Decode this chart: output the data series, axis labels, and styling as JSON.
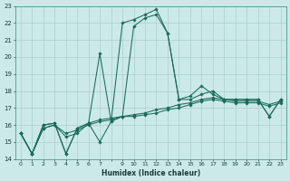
{
  "xlabel": "Humidex (Indice chaleur)",
  "xlim": [
    -0.5,
    23.5
  ],
  "ylim": [
    14,
    23
  ],
  "xticks": [
    0,
    1,
    2,
    3,
    4,
    5,
    6,
    7,
    9,
    10,
    11,
    12,
    13,
    14,
    15,
    16,
    17,
    18,
    19,
    20,
    21,
    22,
    23
  ],
  "yticks": [
    14,
    15,
    16,
    17,
    18,
    19,
    20,
    21,
    22,
    23
  ],
  "bg_color": "#cce9e9",
  "line_color": "#1a6b5a",
  "grid_color": "#aacfcf",
  "series": [
    [
      15.5,
      14.3,
      16.0,
      16.1,
      14.3,
      15.8,
      16.1,
      15.0,
      16.2,
      16.5,
      21.8,
      22.3,
      22.5,
      21.4,
      17.5,
      17.7,
      18.3,
      17.8,
      17.5,
      17.5,
      17.5,
      17.5,
      16.5,
      17.5
    ],
    [
      15.5,
      14.3,
      16.0,
      16.1,
      14.3,
      15.8,
      16.1,
      20.2,
      16.2,
      22.0,
      22.2,
      22.5,
      22.8,
      21.4,
      17.5,
      17.5,
      17.8,
      18.0,
      17.5,
      17.5,
      17.5,
      17.5,
      16.5,
      17.5
    ],
    [
      15.5,
      14.3,
      15.8,
      16.0,
      15.3,
      15.5,
      16.1,
      16.3,
      16.4,
      16.5,
      16.6,
      16.7,
      16.9,
      17.0,
      17.2,
      17.3,
      17.5,
      17.6,
      17.5,
      17.4,
      17.4,
      17.4,
      17.2,
      17.4
    ],
    [
      15.5,
      14.3,
      15.8,
      16.0,
      15.5,
      15.7,
      16.0,
      16.2,
      16.3,
      16.5,
      16.5,
      16.6,
      16.7,
      16.9,
      17.0,
      17.2,
      17.4,
      17.5,
      17.4,
      17.3,
      17.3,
      17.3,
      17.1,
      17.3
    ]
  ]
}
